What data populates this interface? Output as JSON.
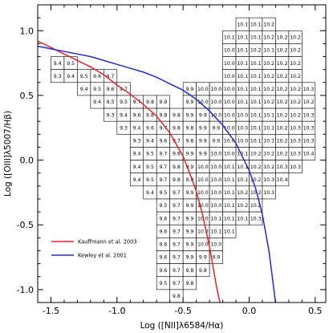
{
  "chart_data": {
    "type": "heatmap",
    "xlabel": "Log ([NII]λ6584/Hα)",
    "ylabel": "Log ([OIII]λ5007/Hβ)",
    "xlim": [
      -1.6,
      0.58
    ],
    "ylim": [
      -1.1,
      1.2
    ],
    "x_ticks": [
      -1.5,
      -1.0,
      -0.5,
      0.0,
      0.5
    ],
    "x_tick_labels": [
      "-1.5",
      "-1.0",
      "-0.5",
      "0.0",
      "0.5"
    ],
    "y_ticks": [
      -1.0,
      -0.5,
      0.0,
      0.5,
      1.0
    ],
    "y_tick_labels": [
      "-1.0",
      "-0.5",
      "0.0",
      "0.5",
      "1.0"
    ],
    "cell_size": 0.1,
    "cells": [
      {
        "x": -0.05,
        "y": 1.05,
        "v": "10.1"
      },
      {
        "x": 0.05,
        "y": 1.05,
        "v": "10.1"
      },
      {
        "x": 0.15,
        "y": 1.05,
        "v": "10.2"
      },
      {
        "x": -0.15,
        "y": 0.95,
        "v": "10.1"
      },
      {
        "x": -0.05,
        "y": 0.95,
        "v": "10.1"
      },
      {
        "x": 0.05,
        "y": 0.95,
        "v": "10.1"
      },
      {
        "x": 0.15,
        "y": 0.95,
        "v": "10.2"
      },
      {
        "x": 0.25,
        "y": 0.95,
        "v": "10.2"
      },
      {
        "x": 0.35,
        "y": 0.95,
        "v": "10.2"
      },
      {
        "x": -0.15,
        "y": 0.85,
        "v": "10.0"
      },
      {
        "x": -0.05,
        "y": 0.85,
        "v": "10.1"
      },
      {
        "x": 0.05,
        "y": 0.85,
        "v": "10.2"
      },
      {
        "x": 0.15,
        "y": 0.85,
        "v": "10.1"
      },
      {
        "x": 0.25,
        "y": 0.85,
        "v": "10.2"
      },
      {
        "x": 0.35,
        "y": 0.85,
        "v": "10.2"
      },
      {
        "x": -1.45,
        "y": 0.75,
        "v": "9.4"
      },
      {
        "x": -1.35,
        "y": 0.75,
        "v": "9.5"
      },
      {
        "x": -0.15,
        "y": 0.75,
        "v": "10.0"
      },
      {
        "x": -0.05,
        "y": 0.75,
        "v": "10.1"
      },
      {
        "x": 0.05,
        "y": 0.75,
        "v": "10.1"
      },
      {
        "x": 0.15,
        "y": 0.75,
        "v": "10.2"
      },
      {
        "x": 0.25,
        "y": 0.75,
        "v": "10.2"
      },
      {
        "x": 0.35,
        "y": 0.75,
        "v": "10.2"
      },
      {
        "x": -1.45,
        "y": 0.65,
        "v": "9.3"
      },
      {
        "x": -1.35,
        "y": 0.65,
        "v": "9.4"
      },
      {
        "x": -1.25,
        "y": 0.65,
        "v": "9.5"
      },
      {
        "x": -1.15,
        "y": 0.65,
        "v": "9.6"
      },
      {
        "x": -1.05,
        "y": 0.65,
        "v": "9.7"
      },
      {
        "x": -0.15,
        "y": 0.65,
        "v": "10.0"
      },
      {
        "x": -0.05,
        "y": 0.65,
        "v": "10.1"
      },
      {
        "x": 0.05,
        "y": 0.65,
        "v": "10.1"
      },
      {
        "x": 0.15,
        "y": 0.65,
        "v": "10.2"
      },
      {
        "x": 0.25,
        "y": 0.65,
        "v": "10.2"
      },
      {
        "x": 0.35,
        "y": 0.65,
        "v": "10.2"
      },
      {
        "x": -1.25,
        "y": 0.55,
        "v": "9.4"
      },
      {
        "x": -1.15,
        "y": 0.55,
        "v": "9.5"
      },
      {
        "x": -1.05,
        "y": 0.55,
        "v": "9.6"
      },
      {
        "x": -0.95,
        "y": 0.55,
        "v": "9.7"
      },
      {
        "x": -0.45,
        "y": 0.55,
        "v": "9.9"
      },
      {
        "x": -0.35,
        "y": 0.55,
        "v": "10.0"
      },
      {
        "x": -0.25,
        "y": 0.55,
        "v": "10.0"
      },
      {
        "x": -0.15,
        "y": 0.55,
        "v": "10.0"
      },
      {
        "x": -0.05,
        "y": 0.55,
        "v": "10.1"
      },
      {
        "x": 0.05,
        "y": 0.55,
        "v": "10.1"
      },
      {
        "x": 0.15,
        "y": 0.55,
        "v": "10.2"
      },
      {
        "x": 0.25,
        "y": 0.55,
        "v": "10.2"
      },
      {
        "x": 0.35,
        "y": 0.55,
        "v": "10.2"
      },
      {
        "x": 0.45,
        "y": 0.55,
        "v": "10.3"
      },
      {
        "x": -1.15,
        "y": 0.45,
        "v": "9.4"
      },
      {
        "x": -1.05,
        "y": 0.45,
        "v": "9.5"
      },
      {
        "x": -0.95,
        "y": 0.45,
        "v": "9.5"
      },
      {
        "x": -0.85,
        "y": 0.45,
        "v": "9.7"
      },
      {
        "x": -0.75,
        "y": 0.45,
        "v": "9.8"
      },
      {
        "x": -0.65,
        "y": 0.45,
        "v": "9.9"
      },
      {
        "x": -0.45,
        "y": 0.45,
        "v": "9.9"
      },
      {
        "x": -0.35,
        "y": 0.45,
        "v": "10.0"
      },
      {
        "x": -0.25,
        "y": 0.45,
        "v": "10.0"
      },
      {
        "x": -0.15,
        "y": 0.45,
        "v": "10.0"
      },
      {
        "x": -0.05,
        "y": 0.45,
        "v": "10.1"
      },
      {
        "x": 0.05,
        "y": 0.45,
        "v": "10.1"
      },
      {
        "x": 0.15,
        "y": 0.45,
        "v": "10.2"
      },
      {
        "x": 0.25,
        "y": 0.45,
        "v": "10.2"
      },
      {
        "x": 0.35,
        "y": 0.45,
        "v": "10.2"
      },
      {
        "x": 0.45,
        "y": 0.45,
        "v": "10.2"
      },
      {
        "x": -1.05,
        "y": 0.35,
        "v": "9.3"
      },
      {
        "x": -0.95,
        "y": 0.35,
        "v": "9.4"
      },
      {
        "x": -0.85,
        "y": 0.35,
        "v": "9.6"
      },
      {
        "x": -0.75,
        "y": 0.35,
        "v": "9.8"
      },
      {
        "x": -0.65,
        "y": 0.35,
        "v": "9.8"
      },
      {
        "x": -0.55,
        "y": 0.35,
        "v": "9.8"
      },
      {
        "x": -0.45,
        "y": 0.35,
        "v": "9.9"
      },
      {
        "x": -0.35,
        "y": 0.35,
        "v": "9.9"
      },
      {
        "x": -0.25,
        "y": 0.35,
        "v": "10.0"
      },
      {
        "x": -0.15,
        "y": 0.35,
        "v": "10.0"
      },
      {
        "x": -0.05,
        "y": 0.35,
        "v": "10.0"
      },
      {
        "x": 0.05,
        "y": 0.35,
        "v": "10.1"
      },
      {
        "x": 0.15,
        "y": 0.35,
        "v": "10.1"
      },
      {
        "x": 0.25,
        "y": 0.35,
        "v": "10.2"
      },
      {
        "x": 0.35,
        "y": 0.35,
        "v": "10.2"
      },
      {
        "x": 0.45,
        "y": 0.35,
        "v": "10.3"
      },
      {
        "x": -0.95,
        "y": 0.25,
        "v": "9.3"
      },
      {
        "x": -0.85,
        "y": 0.25,
        "v": "9.4"
      },
      {
        "x": -0.75,
        "y": 0.25,
        "v": "9.6"
      },
      {
        "x": -0.65,
        "y": 0.25,
        "v": "9.7"
      },
      {
        "x": -0.55,
        "y": 0.25,
        "v": "9.8"
      },
      {
        "x": -0.45,
        "y": 0.25,
        "v": "9.8"
      },
      {
        "x": -0.35,
        "y": 0.25,
        "v": "9.9"
      },
      {
        "x": -0.25,
        "y": 0.25,
        "v": "9.9"
      },
      {
        "x": -0.15,
        "y": 0.25,
        "v": "10.0"
      },
      {
        "x": -0.05,
        "y": 0.25,
        "v": "10.0"
      },
      {
        "x": 0.05,
        "y": 0.25,
        "v": "10.1"
      },
      {
        "x": 0.15,
        "y": 0.25,
        "v": "10.1"
      },
      {
        "x": 0.25,
        "y": 0.25,
        "v": "10.2"
      },
      {
        "x": 0.35,
        "y": 0.25,
        "v": "10.3"
      },
      {
        "x": 0.45,
        "y": 0.25,
        "v": "10.3"
      },
      {
        "x": -0.85,
        "y": 0.15,
        "v": "9.3"
      },
      {
        "x": -0.75,
        "y": 0.15,
        "v": "9.4"
      },
      {
        "x": -0.65,
        "y": 0.15,
        "v": "9.6"
      },
      {
        "x": -0.55,
        "y": 0.15,
        "v": "9.7"
      },
      {
        "x": -0.45,
        "y": 0.15,
        "v": "9.8"
      },
      {
        "x": -0.35,
        "y": 0.15,
        "v": "9.9"
      },
      {
        "x": -0.25,
        "y": 0.15,
        "v": "9.9"
      },
      {
        "x": -0.15,
        "y": 0.15,
        "v": "10.0"
      },
      {
        "x": -0.05,
        "y": 0.15,
        "v": "10.0"
      },
      {
        "x": 0.05,
        "y": 0.15,
        "v": "10.1"
      },
      {
        "x": 0.15,
        "y": 0.15,
        "v": "10.1"
      },
      {
        "x": 0.25,
        "y": 0.15,
        "v": "10.2"
      },
      {
        "x": 0.35,
        "y": 0.15,
        "v": "10.3"
      },
      {
        "x": 0.45,
        "y": 0.15,
        "v": "10.3"
      },
      {
        "x": -0.85,
        "y": 0.05,
        "v": "9.4"
      },
      {
        "x": -0.75,
        "y": 0.05,
        "v": "9.5"
      },
      {
        "x": -0.65,
        "y": 0.05,
        "v": "9.7"
      },
      {
        "x": -0.55,
        "y": 0.05,
        "v": "9.8"
      },
      {
        "x": -0.45,
        "y": 0.05,
        "v": "9.9"
      },
      {
        "x": -0.35,
        "y": 0.05,
        "v": "9.9"
      },
      {
        "x": -0.25,
        "y": 0.05,
        "v": "10.0"
      },
      {
        "x": -0.15,
        "y": 0.05,
        "v": "10.0"
      },
      {
        "x": -0.05,
        "y": 0.05,
        "v": "10.1"
      },
      {
        "x": 0.05,
        "y": 0.05,
        "v": "10.2"
      },
      {
        "x": 0.15,
        "y": 0.05,
        "v": "10.2"
      },
      {
        "x": 0.25,
        "y": 0.05,
        "v": "10.2"
      },
      {
        "x": 0.35,
        "y": 0.05,
        "v": "10.3"
      },
      {
        "x": 0.45,
        "y": 0.05,
        "v": "10.4"
      },
      {
        "x": -0.85,
        "y": -0.05,
        "v": "9.4"
      },
      {
        "x": -0.75,
        "y": -0.05,
        "v": "9.5"
      },
      {
        "x": -0.65,
        "y": -0.05,
        "v": "9.7"
      },
      {
        "x": -0.55,
        "y": -0.05,
        "v": "9.8"
      },
      {
        "x": -0.45,
        "y": -0.05,
        "v": "9.9"
      },
      {
        "x": -0.35,
        "y": -0.05,
        "v": "10.0"
      },
      {
        "x": -0.25,
        "y": -0.05,
        "v": "10.0"
      },
      {
        "x": -0.15,
        "y": -0.05,
        "v": "10.1"
      },
      {
        "x": -0.05,
        "y": -0.05,
        "v": "10.1"
      },
      {
        "x": 0.05,
        "y": -0.05,
        "v": "10.2"
      },
      {
        "x": 0.15,
        "y": -0.05,
        "v": "10.2"
      },
      {
        "x": 0.25,
        "y": -0.05,
        "v": "10.3"
      },
      {
        "x": 0.35,
        "y": -0.05,
        "v": "10.3"
      },
      {
        "x": -0.85,
        "y": -0.15,
        "v": "9.4"
      },
      {
        "x": -0.75,
        "y": -0.15,
        "v": "9.5"
      },
      {
        "x": -0.65,
        "y": -0.15,
        "v": "9.7"
      },
      {
        "x": -0.55,
        "y": -0.15,
        "v": "9.8"
      },
      {
        "x": -0.45,
        "y": -0.15,
        "v": "9.9"
      },
      {
        "x": -0.35,
        "y": -0.15,
        "v": "10.0"
      },
      {
        "x": -0.25,
        "y": -0.15,
        "v": "10.0"
      },
      {
        "x": -0.15,
        "y": -0.15,
        "v": "10.1"
      },
      {
        "x": -0.05,
        "y": -0.15,
        "v": "10.1"
      },
      {
        "x": 0.05,
        "y": -0.15,
        "v": "10.2"
      },
      {
        "x": 0.15,
        "y": -0.15,
        "v": "10.3"
      },
      {
        "x": 0.25,
        "y": -0.15,
        "v": "10.4"
      },
      {
        "x": -0.75,
        "y": -0.25,
        "v": "9.4"
      },
      {
        "x": -0.65,
        "y": -0.25,
        "v": "9.5"
      },
      {
        "x": -0.55,
        "y": -0.25,
        "v": "9.7"
      },
      {
        "x": -0.45,
        "y": -0.25,
        "v": "9.9"
      },
      {
        "x": -0.35,
        "y": -0.25,
        "v": "10.0"
      },
      {
        "x": -0.25,
        "y": -0.25,
        "v": "10.0"
      },
      {
        "x": -0.15,
        "y": -0.25,
        "v": "10.1"
      },
      {
        "x": -0.05,
        "y": -0.25,
        "v": "10.2"
      },
      {
        "x": 0.05,
        "y": -0.25,
        "v": "10.2"
      },
      {
        "x": 0.15,
        "y": -0.25,
        "v": "10.3"
      },
      {
        "x": -0.65,
        "y": -0.35,
        "v": "9.5"
      },
      {
        "x": -0.55,
        "y": -0.35,
        "v": "9.7"
      },
      {
        "x": -0.45,
        "y": -0.35,
        "v": "9.9"
      },
      {
        "x": -0.35,
        "y": -0.35,
        "v": "10.0"
      },
      {
        "x": -0.25,
        "y": -0.35,
        "v": "10.0"
      },
      {
        "x": -0.15,
        "y": -0.35,
        "v": "10.1"
      },
      {
        "x": -0.05,
        "y": -0.35,
        "v": "10.2"
      },
      {
        "x": 0.05,
        "y": -0.35,
        "v": "10.2"
      },
      {
        "x": -0.65,
        "y": -0.45,
        "v": "9.6"
      },
      {
        "x": -0.55,
        "y": -0.45,
        "v": "9.7"
      },
      {
        "x": -0.45,
        "y": -0.45,
        "v": "9.9"
      },
      {
        "x": -0.35,
        "y": -0.45,
        "v": "10.0"
      },
      {
        "x": -0.25,
        "y": -0.45,
        "v": "10.1"
      },
      {
        "x": -0.15,
        "y": -0.45,
        "v": "10.1"
      },
      {
        "x": -0.05,
        "y": -0.45,
        "v": "10.1"
      },
      {
        "x": 0.05,
        "y": -0.45,
        "v": "10.3"
      },
      {
        "x": -0.65,
        "y": -0.55,
        "v": "9.6"
      },
      {
        "x": -0.55,
        "y": -0.55,
        "v": "9.7"
      },
      {
        "x": -0.45,
        "y": -0.55,
        "v": "9.9"
      },
      {
        "x": -0.35,
        "y": -0.55,
        "v": "10.0"
      },
      {
        "x": -0.25,
        "y": -0.55,
        "v": "10.1"
      },
      {
        "x": -0.15,
        "y": -0.55,
        "v": "10.1"
      },
      {
        "x": -0.65,
        "y": -0.65,
        "v": "9.6"
      },
      {
        "x": -0.55,
        "y": -0.65,
        "v": "9.7"
      },
      {
        "x": -0.45,
        "y": -0.65,
        "v": "9.9"
      },
      {
        "x": -0.35,
        "y": -0.65,
        "v": "10.0"
      },
      {
        "x": -0.25,
        "y": -0.65,
        "v": "10.0"
      },
      {
        "x": -0.65,
        "y": -0.75,
        "v": "9.6"
      },
      {
        "x": -0.55,
        "y": -0.75,
        "v": "9.7"
      },
      {
        "x": -0.45,
        "y": -0.75,
        "v": "9.9"
      },
      {
        "x": -0.35,
        "y": -0.75,
        "v": "9.9"
      },
      {
        "x": -0.25,
        "y": -0.75,
        "v": "9.9"
      },
      {
        "x": -0.65,
        "y": -0.85,
        "v": "9.6"
      },
      {
        "x": -0.55,
        "y": -0.85,
        "v": "9.7"
      },
      {
        "x": -0.45,
        "y": -0.85,
        "v": "9.8"
      },
      {
        "x": -0.35,
        "y": -0.85,
        "v": "9.8"
      },
      {
        "x": -0.65,
        "y": -0.95,
        "v": "9.5"
      },
      {
        "x": -0.55,
        "y": -0.95,
        "v": "9.7"
      },
      {
        "x": -0.45,
        "y": -0.95,
        "v": "9.8"
      },
      {
        "x": -0.55,
        "y": -1.05,
        "v": "9.8"
      }
    ],
    "series": [
      {
        "name": "Kauffmann et al. 2003",
        "type": "line",
        "color": "#e8242a",
        "x": [
          -1.6,
          -1.5,
          -1.4,
          -1.3,
          -1.2,
          -1.1,
          -1.0,
          -0.9,
          -0.8,
          -0.7,
          -0.6,
          -0.5,
          -0.45,
          -0.4,
          -0.35,
          -0.3,
          -0.27,
          -0.25,
          -0.23,
          -0.22
        ],
        "y": [
          0.92,
          0.87,
          0.82,
          0.77,
          0.72,
          0.66,
          0.58,
          0.51,
          0.43,
          0.34,
          0.21,
          0.03,
          -0.1,
          -0.24,
          -0.43,
          -0.67,
          -0.84,
          -0.96,
          -1.06,
          -1.1
        ]
      },
      {
        "name": "Kewley et al. 2001",
        "type": "line",
        "color": "#1f2bd6",
        "x": [
          -1.6,
          -1.5,
          -1.4,
          -1.3,
          -1.2,
          -1.1,
          -1.0,
          -0.9,
          -0.8,
          -0.7,
          -0.6,
          -0.5,
          -0.4,
          -0.3,
          -0.2,
          -0.1,
          0.0,
          0.05,
          0.1,
          0.15,
          0.2
        ],
        "y": [
          0.88,
          0.86,
          0.84,
          0.82,
          0.8,
          0.77,
          0.74,
          0.71,
          0.68,
          0.64,
          0.59,
          0.54,
          0.47,
          0.38,
          0.27,
          0.13,
          -0.08,
          -0.22,
          -0.42,
          -0.7,
          -1.1
        ]
      }
    ],
    "legend_position": "bottom-left",
    "grid": false
  }
}
